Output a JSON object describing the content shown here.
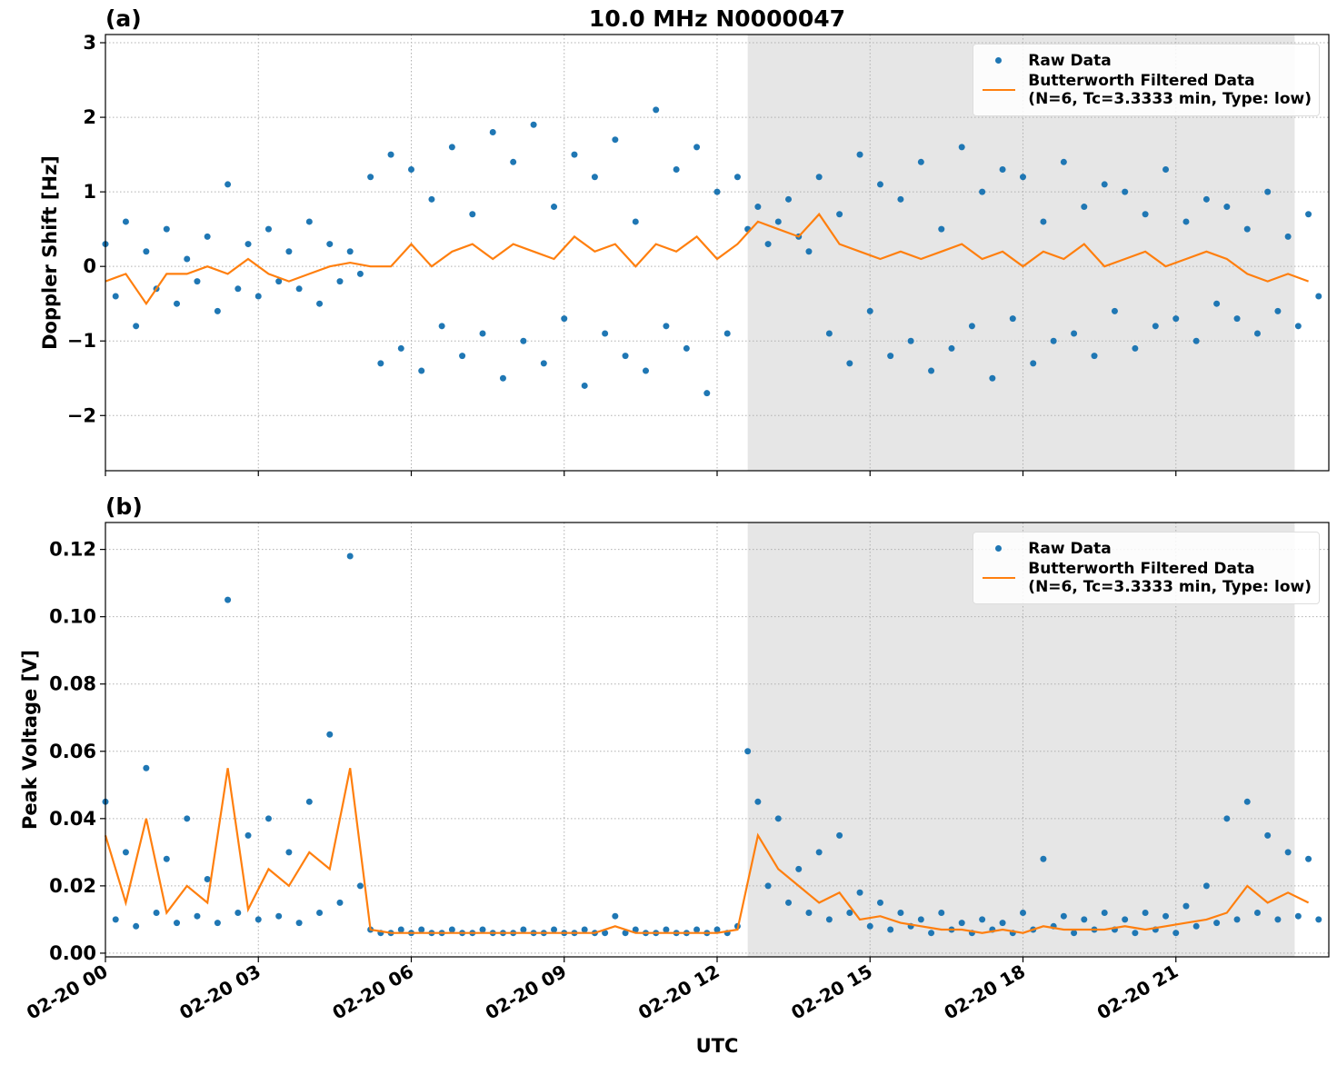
{
  "chart_data": [
    {
      "type": "scatter",
      "title": "10.0 MHz N0000047",
      "panel_label": "(a)",
      "ylabel": "Doppler Shift [Hz]",
      "xlim": [
        0,
        24
      ],
      "ylim": [
        -2.74,
        3.11
      ],
      "yticks": [
        {
          "value": -2,
          "label": "−2"
        },
        {
          "value": -1,
          "label": "−1"
        },
        0,
        1,
        2,
        3
      ],
      "grid": true,
      "legend": "upper right",
      "shade": {
        "xlim": [
          12.6,
          23.33
        ],
        "color": "#e6e6e6"
      },
      "series": [
        {
          "name": "Raw Data",
          "type": "scatter",
          "color": "#1f77b4",
          "x": [
            0,
            0.2,
            0.4,
            0.6,
            0.8,
            1,
            1.2,
            1.4,
            1.6,
            1.8,
            2,
            2.2,
            2.4,
            2.6,
            2.8,
            3,
            3.2,
            3.4,
            3.6,
            3.8,
            4,
            4.2,
            4.4,
            4.6,
            4.8,
            5,
            5.2,
            5.4,
            5.6,
            5.8,
            6,
            6.2,
            6.4,
            6.6,
            6.8,
            7,
            7.2,
            7.4,
            7.6,
            7.8,
            8,
            8.2,
            8.4,
            8.6,
            8.8,
            9,
            9.2,
            9.4,
            9.6,
            9.8,
            10,
            10.2,
            10.4,
            10.6,
            10.8,
            11,
            11.2,
            11.4,
            11.6,
            11.8,
            12,
            12.2,
            12.4,
            12.6,
            12.8,
            13,
            13.2,
            13.4,
            13.6,
            13.8,
            14,
            14.2,
            14.4,
            14.6,
            14.8,
            15,
            15.2,
            15.4,
            15.6,
            15.8,
            16,
            16.2,
            16.4,
            16.6,
            16.8,
            17,
            17.2,
            17.4,
            17.6,
            17.8,
            18,
            18.2,
            18.4,
            18.6,
            18.8,
            19,
            19.2,
            19.4,
            19.6,
            19.8,
            20,
            20.2,
            20.4,
            20.6,
            20.8,
            21,
            21.2,
            21.4,
            21.6,
            21.8,
            22,
            22.2,
            22.4,
            22.6,
            22.8,
            23,
            23.2,
            23.4,
            23.6,
            23.8
          ],
          "values": [
            0.3,
            -0.4,
            0.6,
            -0.8,
            0.2,
            -0.3,
            0.5,
            -0.5,
            0.1,
            -0.2,
            0.4,
            -0.6,
            1.1,
            -0.3,
            0.3,
            -0.4,
            0.5,
            -0.2,
            0.2,
            -0.3,
            0.6,
            -0.5,
            0.3,
            -0.2,
            0.2,
            -0.1,
            1.2,
            -1.3,
            1.5,
            -1.1,
            1.3,
            -1.4,
            0.9,
            -0.8,
            1.6,
            -1.2,
            0.7,
            -0.9,
            1.8,
            -1.5,
            1.4,
            -1.0,
            1.9,
            -1.3,
            0.8,
            -0.7,
            1.5,
            -1.6,
            1.2,
            -0.9,
            1.7,
            -1.2,
            0.6,
            -1.4,
            2.1,
            -0.8,
            1.3,
            -1.1,
            1.6,
            -1.7,
            1.0,
            -0.9,
            1.2,
            0.5,
            0.8,
            0.3,
            0.6,
            0.9,
            0.4,
            0.2,
            1.2,
            -0.9,
            0.7,
            -1.3,
            1.5,
            -0.6,
            1.1,
            -1.2,
            0.9,
            -1.0,
            1.4,
            -1.4,
            0.5,
            -1.1,
            1.6,
            -0.8,
            1.0,
            -1.5,
            1.3,
            -0.7,
            1.2,
            -1.3,
            0.6,
            -1.0,
            1.4,
            -0.9,
            0.8,
            -1.2,
            1.1,
            -0.6,
            1.0,
            -1.1,
            0.7,
            -0.8,
            1.3,
            -0.7,
            0.6,
            -1.0,
            0.9,
            -0.5,
            0.8,
            -0.7,
            0.5,
            -0.9,
            1.0,
            -0.6,
            0.4,
            -0.8,
            0.7,
            -0.4
          ]
        },
        {
          "name": "Butterworth Filtered Data\n(N=6, Tc=3.3333 min, Type: low)",
          "type": "line",
          "color": "#ff7f0e",
          "x": [
            0,
            0.4,
            0.8,
            1.2,
            1.6,
            2,
            2.4,
            2.8,
            3.2,
            3.6,
            4,
            4.4,
            4.8,
            5.2,
            5.6,
            6,
            6.4,
            6.8,
            7.2,
            7.6,
            8,
            8.4,
            8.8,
            9.2,
            9.6,
            10,
            10.4,
            10.8,
            11.2,
            11.6,
            12,
            12.4,
            12.8,
            13.2,
            13.6,
            14,
            14.4,
            14.8,
            15.2,
            15.6,
            16,
            16.4,
            16.8,
            17.2,
            17.6,
            18,
            18.4,
            18.8,
            19.2,
            19.6,
            20,
            20.4,
            20.8,
            21.2,
            21.6,
            22,
            22.4,
            22.8,
            23.2,
            23.6
          ],
          "values": [
            -0.2,
            -0.1,
            -0.5,
            -0.1,
            -0.1,
            0.0,
            -0.1,
            0.1,
            -0.1,
            -0.2,
            -0.1,
            0.0,
            0.05,
            0.0,
            0.0,
            0.3,
            0.0,
            0.2,
            0.3,
            0.1,
            0.3,
            0.2,
            0.1,
            0.4,
            0.2,
            0.3,
            0.0,
            0.3,
            0.2,
            0.4,
            0.1,
            0.3,
            0.6,
            0.5,
            0.4,
            0.7,
            0.3,
            0.2,
            0.1,
            0.2,
            0.1,
            0.2,
            0.3,
            0.1,
            0.2,
            0.0,
            0.2,
            0.1,
            0.3,
            0.0,
            0.1,
            0.2,
            0.0,
            0.1,
            0.2,
            0.1,
            -0.1,
            -0.2,
            -0.1,
            -0.2
          ]
        }
      ]
    },
    {
      "type": "scatter",
      "panel_label": "(b)",
      "ylabel": "Peak Voltage [V]",
      "xlabel": "UTC",
      "xlim": [
        0,
        24
      ],
      "ylim": [
        -0.0011,
        0.128
      ],
      "xticks": [
        {
          "value": 0,
          "label": "02-20 00"
        },
        {
          "value": 3,
          "label": "02-20 03"
        },
        {
          "value": 6,
          "label": "02-20 06"
        },
        {
          "value": 9,
          "label": "02-20 09"
        },
        {
          "value": 12,
          "label": "02-20 12"
        },
        {
          "value": 15,
          "label": "02-20 15"
        },
        {
          "value": 18,
          "label": "02-20 18"
        },
        {
          "value": 21,
          "label": "02-20 21"
        }
      ],
      "yticks": [
        {
          "value": 0,
          "label": "0.00"
        },
        0.02,
        0.04,
        0.06,
        0.08,
        {
          "value": 0.1,
          "label": "0.10"
        },
        0.12
      ],
      "grid": true,
      "legend": "upper right",
      "shade": {
        "xlim": [
          12.6,
          23.33
        ],
        "color": "#e6e6e6"
      },
      "series": [
        {
          "name": "Raw Data",
          "type": "scatter",
          "color": "#1f77b4",
          "x": [
            0,
            0.2,
            0.4,
            0.6,
            0.8,
            1,
            1.2,
            1.4,
            1.6,
            1.8,
            2,
            2.2,
            2.4,
            2.6,
            2.8,
            3,
            3.2,
            3.4,
            3.6,
            3.8,
            4,
            4.2,
            4.4,
            4.6,
            4.8,
            5,
            5.2,
            5.4,
            5.6,
            5.8,
            6,
            6.2,
            6.4,
            6.6,
            6.8,
            7,
            7.2,
            7.4,
            7.6,
            7.8,
            8,
            8.2,
            8.4,
            8.6,
            8.8,
            9,
            9.2,
            9.4,
            9.6,
            9.8,
            10,
            10.2,
            10.4,
            10.6,
            10.8,
            11,
            11.2,
            11.4,
            11.6,
            11.8,
            12,
            12.2,
            12.4,
            12.6,
            12.8,
            13,
            13.2,
            13.4,
            13.6,
            13.8,
            14,
            14.2,
            14.4,
            14.6,
            14.8,
            15,
            15.2,
            15.4,
            15.6,
            15.8,
            16,
            16.2,
            16.4,
            16.6,
            16.8,
            17,
            17.2,
            17.4,
            17.6,
            17.8,
            18,
            18.2,
            18.4,
            18.6,
            18.8,
            19,
            19.2,
            19.4,
            19.6,
            19.8,
            20,
            20.2,
            20.4,
            20.6,
            20.8,
            21,
            21.2,
            21.4,
            21.6,
            21.8,
            22,
            22.2,
            22.4,
            22.6,
            22.8,
            23,
            23.2,
            23.4,
            23.6,
            23.8
          ],
          "values": [
            0.045,
            0.01,
            0.03,
            0.008,
            0.055,
            0.012,
            0.028,
            0.009,
            0.04,
            0.011,
            0.022,
            0.009,
            0.105,
            0.012,
            0.035,
            0.01,
            0.04,
            0.011,
            0.03,
            0.009,
            0.045,
            0.012,
            0.065,
            0.015,
            0.118,
            0.02,
            0.007,
            0.006,
            0.006,
            0.007,
            0.006,
            0.007,
            0.006,
            0.006,
            0.007,
            0.006,
            0.006,
            0.007,
            0.006,
            0.006,
            0.006,
            0.007,
            0.006,
            0.006,
            0.007,
            0.006,
            0.006,
            0.007,
            0.006,
            0.006,
            0.011,
            0.006,
            0.007,
            0.006,
            0.006,
            0.007,
            0.006,
            0.006,
            0.007,
            0.006,
            0.007,
            0.006,
            0.008,
            0.06,
            0.045,
            0.02,
            0.04,
            0.015,
            0.025,
            0.012,
            0.03,
            0.01,
            0.035,
            0.012,
            0.018,
            0.008,
            0.015,
            0.007,
            0.012,
            0.008,
            0.01,
            0.006,
            0.012,
            0.007,
            0.009,
            0.006,
            0.01,
            0.007,
            0.009,
            0.006,
            0.012,
            0.007,
            0.028,
            0.008,
            0.011,
            0.006,
            0.01,
            0.007,
            0.012,
            0.007,
            0.01,
            0.006,
            0.012,
            0.007,
            0.011,
            0.006,
            0.014,
            0.008,
            0.02,
            0.009,
            0.04,
            0.01,
            0.045,
            0.012,
            0.035,
            0.01,
            0.03,
            0.011,
            0.028,
            0.01
          ]
        },
        {
          "name": "Butterworth Filtered Data\n(N=6, Tc=3.3333 min, Type: low)",
          "type": "line",
          "color": "#ff7f0e",
          "x": [
            0,
            0.4,
            0.8,
            1.2,
            1.6,
            2,
            2.4,
            2.8,
            3.2,
            3.6,
            4,
            4.4,
            4.8,
            5.2,
            5.6,
            6,
            6.4,
            6.8,
            7.2,
            7.6,
            8,
            8.4,
            8.8,
            9.2,
            9.6,
            10,
            10.4,
            10.8,
            11.2,
            11.6,
            12,
            12.4,
            12.8,
            13.2,
            13.6,
            14,
            14.4,
            14.8,
            15.2,
            15.6,
            16,
            16.4,
            16.8,
            17.2,
            17.6,
            18,
            18.4,
            18.8,
            19.2,
            19.6,
            20,
            20.4,
            20.8,
            21.2,
            21.6,
            22,
            22.4,
            22.8,
            23.2,
            23.6
          ],
          "values": [
            0.035,
            0.015,
            0.04,
            0.012,
            0.02,
            0.015,
            0.055,
            0.013,
            0.025,
            0.02,
            0.03,
            0.025,
            0.055,
            0.007,
            0.006,
            0.006,
            0.006,
            0.006,
            0.006,
            0.006,
            0.006,
            0.006,
            0.006,
            0.006,
            0.006,
            0.008,
            0.006,
            0.006,
            0.006,
            0.006,
            0.006,
            0.007,
            0.035,
            0.025,
            0.02,
            0.015,
            0.018,
            0.01,
            0.011,
            0.009,
            0.008,
            0.007,
            0.007,
            0.006,
            0.007,
            0.006,
            0.008,
            0.007,
            0.007,
            0.007,
            0.008,
            0.007,
            0.008,
            0.009,
            0.01,
            0.012,
            0.02,
            0.015,
            0.018,
            0.015
          ]
        }
      ]
    }
  ]
}
